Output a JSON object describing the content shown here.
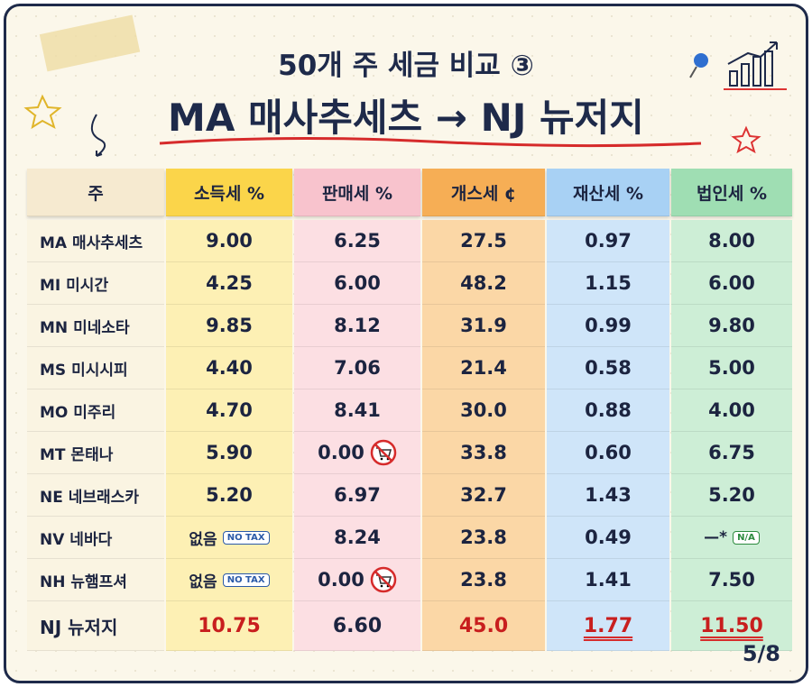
{
  "header": {
    "subtitle": "50개 주 세금 비교 ③",
    "title": "MA 매사추세츠 → NJ 뉴저지"
  },
  "table": {
    "columns": [
      "주",
      "소득세 %",
      "판매세 %",
      "개스세 ¢",
      "재산세 %",
      "법인세 %"
    ],
    "rows": [
      [
        "MA 매사추세츠",
        "9.00",
        "6.25",
        "27.5",
        "0.97",
        "8.00"
      ],
      [
        "MI 미시간",
        "4.25",
        "6.00",
        "48.2",
        "1.15",
        "6.00"
      ],
      [
        "MN 미네소타",
        "9.85",
        "8.12",
        "31.9",
        "0.99",
        "9.80"
      ],
      [
        "MS 미시시피",
        "4.40",
        "7.06",
        "21.4",
        "0.58",
        "5.00"
      ],
      [
        "MO 미주리",
        "4.70",
        "8.41",
        "30.0",
        "0.88",
        "4.00"
      ],
      [
        "MT 몬태나",
        "5.90",
        {
          "text": "0.00",
          "icon": "no-cart"
        },
        "33.8",
        "0.60",
        "6.75"
      ],
      [
        "NE 네브래스카",
        "5.20",
        "6.97",
        "32.7",
        "1.43",
        "5.20"
      ],
      [
        "NV 네바다",
        {
          "text": "없음",
          "badge": "NO TAX"
        },
        "8.24",
        "23.8",
        "0.49",
        {
          "text": "—*",
          "badge": "N/A"
        }
      ],
      [
        "NH 뉴햄프셔",
        {
          "text": "없음",
          "badge": "NO TAX"
        },
        {
          "text": "0.00",
          "icon": "no-cart"
        },
        "23.8",
        "1.41",
        "7.50"
      ],
      [
        "NJ 뉴저지",
        "10.75",
        "6.60",
        "45.0",
        "1.77",
        "11.50"
      ]
    ]
  },
  "page": "5/8"
}
